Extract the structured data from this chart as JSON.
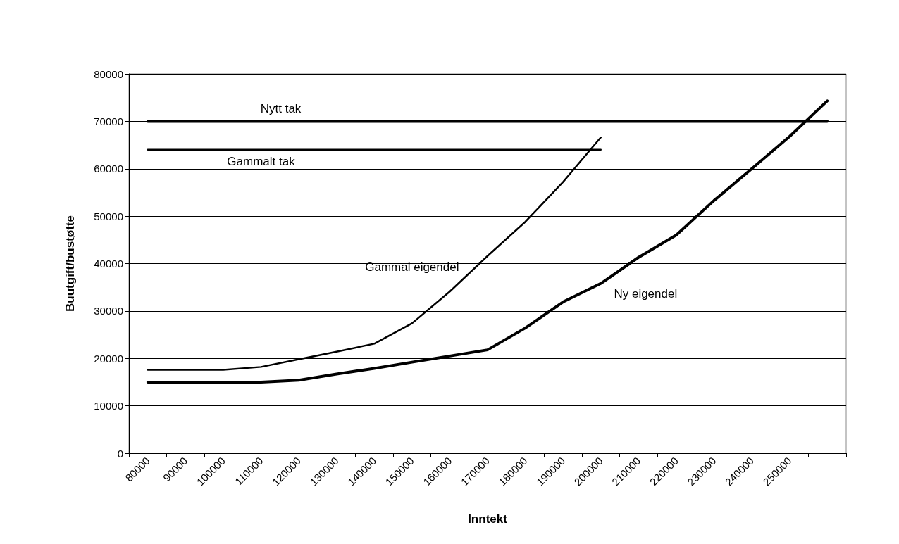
{
  "chart_data": {
    "type": "line",
    "xlabel": "Inntekt",
    "ylabel": "Buutgift/bustøtte",
    "categories": [
      "80000",
      "90000",
      "100000",
      "110000",
      "120000",
      "130000",
      "140000",
      "150000",
      "160000",
      "170000",
      "180000",
      "190000",
      "200000",
      "210000",
      "220000",
      "230000",
      "240000",
      "250000",
      null
    ],
    "series": [
      {
        "name": "Nytt tak",
        "color": "#000000",
        "values": [
          70000,
          70000,
          70000,
          70000,
          70000,
          70000,
          70000,
          70000,
          70000,
          70000,
          70000,
          70000,
          70000,
          70000,
          70000,
          70000,
          70000,
          70000,
          70000
        ]
      },
      {
        "name": "Gammalt tak",
        "color": "#000000",
        "values": [
          64000,
          64000,
          64000,
          64000,
          64000,
          64000,
          64000,
          64000,
          64000,
          64000,
          64000,
          64000,
          64000,
          null,
          null,
          null,
          null,
          null,
          null
        ]
      },
      {
        "name": "Gammal eigendel",
        "color": "#000000",
        "values": [
          17600,
          17600,
          17600,
          18200,
          19800,
          21400,
          23100,
          27400,
          34100,
          41600,
          48800,
          57200,
          66600,
          null,
          null,
          null,
          null,
          null,
          null
        ]
      },
      {
        "name": "Ny eigendel",
        "color": "#000000",
        "values": [
          15000,
          15000,
          15000,
          15000,
          15400,
          16700,
          17900,
          19200,
          20500,
          21800,
          26400,
          31900,
          35800,
          41300,
          46000,
          53300,
          60000,
          66800,
          74300
        ]
      }
    ],
    "ylim": [
      0,
      80000
    ],
    "yticks": [
      0,
      10000,
      20000,
      30000,
      40000,
      50000,
      60000,
      70000,
      80000
    ],
    "grid": "y",
    "marker": "none",
    "line_style": "solid"
  }
}
